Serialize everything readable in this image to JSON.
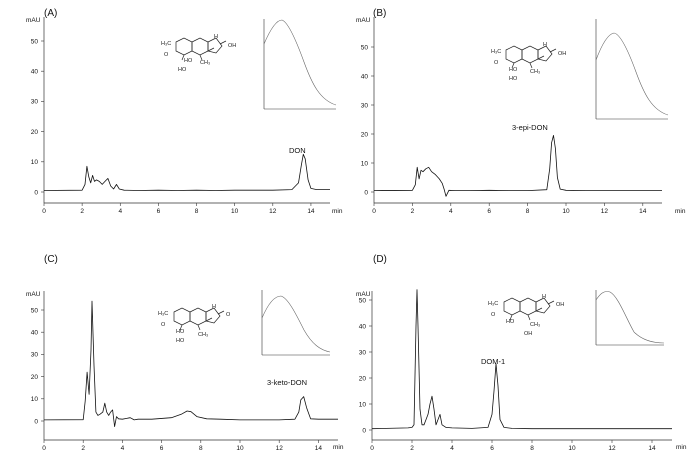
{
  "chart_data": [
    {
      "type": "line",
      "panel_label": "(A)",
      "ylabel": "mAU",
      "xlabel": "min",
      "xlim": [
        0,
        15
      ],
      "ylim": [
        -2,
        56
      ],
      "x_ticks": [
        "0",
        "2",
        "4",
        "6",
        "8",
        "10",
        "12",
        "14"
      ],
      "y_ticks": [
        "0",
        "10",
        "20",
        "30",
        "40",
        "50"
      ],
      "peak_label": "DON",
      "series": [
        {
          "x": [
            0,
            2.0,
            2.15,
            2.25,
            2.35,
            2.45,
            2.55,
            2.65,
            2.75,
            2.9,
            3.05,
            3.2,
            3.35,
            3.5,
            3.65,
            3.8,
            3.95,
            4.2,
            5.0,
            6.0,
            7.0,
            8.0,
            9.0,
            10.0,
            11.0,
            12.0,
            13.0,
            13.35,
            13.5,
            13.6,
            13.7,
            13.85,
            14.0,
            14.3,
            15.0
          ],
          "values": [
            0.5,
            0.6,
            2.5,
            8.5,
            5.0,
            3.0,
            5.5,
            3.5,
            4.0,
            3.5,
            2.5,
            3.5,
            4.5,
            2.0,
            1.0,
            2.5,
            1.0,
            0.6,
            0.5,
            0.6,
            0.5,
            0.6,
            0.5,
            0.6,
            0.6,
            0.6,
            0.8,
            3.0,
            9.0,
            12.5,
            11.0,
            4.0,
            1.2,
            0.8,
            0.8
          ]
        }
      ]
    },
    {
      "type": "line",
      "panel_label": "(B)",
      "ylabel": "mAU",
      "xlabel": "min",
      "xlim": [
        0,
        15
      ],
      "ylim": [
        -2,
        56
      ],
      "x_ticks": [
        "0",
        "2",
        "4",
        "6",
        "8",
        "10",
        "12",
        "14"
      ],
      "y_ticks": [
        "0",
        "10",
        "20",
        "30",
        "40",
        "50"
      ],
      "peak_label": "3-epi-DON",
      "series": [
        {
          "x": [
            0,
            2.0,
            2.15,
            2.25,
            2.35,
            2.45,
            2.55,
            2.7,
            2.85,
            3.0,
            3.2,
            3.4,
            3.55,
            3.65,
            3.75,
            3.9,
            4.2,
            5.0,
            6.0,
            7.0,
            8.0,
            9.0,
            9.15,
            9.25,
            9.35,
            9.45,
            9.55,
            9.7,
            10.0,
            11.0,
            12.0,
            13.0,
            14.0,
            15.0
          ],
          "values": [
            0.5,
            0.6,
            2.5,
            8.5,
            4.5,
            7.5,
            7.0,
            8.0,
            8.5,
            7.0,
            6.0,
            4.5,
            3.0,
            1.0,
            -1.5,
            0.6,
            0.5,
            0.5,
            0.6,
            0.5,
            0.5,
            0.8,
            8.0,
            17.0,
            19.5,
            15.0,
            5.0,
            1.0,
            0.6,
            0.5,
            0.5,
            0.5,
            0.5,
            0.5
          ]
        }
      ]
    },
    {
      "type": "line",
      "panel_label": "(C)",
      "ylabel": "mAU",
      "xlabel": "min",
      "xlim": [
        0,
        15
      ],
      "ylim": [
        -2,
        56
      ],
      "x_ticks": [
        "0",
        "2",
        "4",
        "6",
        "8",
        "10",
        "12",
        "14"
      ],
      "y_ticks": [
        "0",
        "10",
        "20",
        "30",
        "40",
        "50"
      ],
      "peak_label": "3-keto-DON",
      "series": [
        {
          "x": [
            0,
            2.0,
            2.1,
            2.2,
            2.3,
            2.4,
            2.45,
            2.55,
            2.65,
            2.75,
            2.85,
            3.0,
            3.1,
            3.2,
            3.3,
            3.4,
            3.5,
            3.6,
            3.7,
            3.8,
            4.0,
            4.4,
            4.6,
            4.8,
            5.5,
            6.5,
            7.0,
            7.3,
            7.5,
            7.8,
            8.3,
            9.0,
            10.0,
            11.0,
            12.0,
            12.8,
            13.0,
            13.1,
            13.25,
            13.4,
            13.6,
            14.0,
            15.0
          ],
          "values": [
            0.5,
            0.6,
            9.0,
            22.0,
            12.0,
            32.0,
            54.0,
            25.0,
            4.0,
            2.5,
            3.0,
            4.0,
            8.0,
            4.0,
            2.5,
            4.0,
            5.0,
            -2.5,
            2.0,
            1.0,
            0.8,
            1.5,
            0.5,
            0.8,
            0.8,
            1.5,
            3.0,
            4.5,
            4.2,
            2.0,
            1.0,
            0.8,
            0.5,
            0.5,
            0.5,
            0.8,
            4.0,
            9.5,
            11.0,
            6.0,
            1.0,
            0.8,
            0.8
          ]
        }
      ]
    },
    {
      "type": "line",
      "panel_label": "(D)",
      "ylabel": "mAU",
      "xlabel": "min",
      "xlim": [
        0,
        15
      ],
      "ylim": [
        -2,
        56
      ],
      "x_ticks": [
        "0",
        "2",
        "4",
        "6",
        "8",
        "10",
        "12",
        "14"
      ],
      "y_ticks": [
        "0",
        "10",
        "20",
        "30",
        "40",
        "50"
      ],
      "peak_label": "DOM-1",
      "series": [
        {
          "x": [
            0,
            1.8,
            2.0,
            2.1,
            2.2,
            2.25,
            2.3,
            2.4,
            2.5,
            2.6,
            2.7,
            2.8,
            2.9,
            3.0,
            3.1,
            3.2,
            3.3,
            3.4,
            3.5,
            3.7,
            4.0,
            5.0,
            5.8,
            6.0,
            6.1,
            6.2,
            6.3,
            6.4,
            6.6,
            7.0,
            8.0,
            9.0,
            10.0,
            11.0,
            12.0,
            13.0,
            14.0,
            15.0
          ],
          "values": [
            0.5,
            0.8,
            1.0,
            2.0,
            40.0,
            54.0,
            40.0,
            8.0,
            2.0,
            2.0,
            4.0,
            6.0,
            10.0,
            13.0,
            8.0,
            2.0,
            4.0,
            6.0,
            2.0,
            1.0,
            0.8,
            0.6,
            1.0,
            6.0,
            15.0,
            25.5,
            17.0,
            4.0,
            1.0,
            0.6,
            0.5,
            0.5,
            0.5,
            0.5,
            0.5,
            0.5,
            0.5,
            0.5
          ]
        }
      ]
    }
  ]
}
